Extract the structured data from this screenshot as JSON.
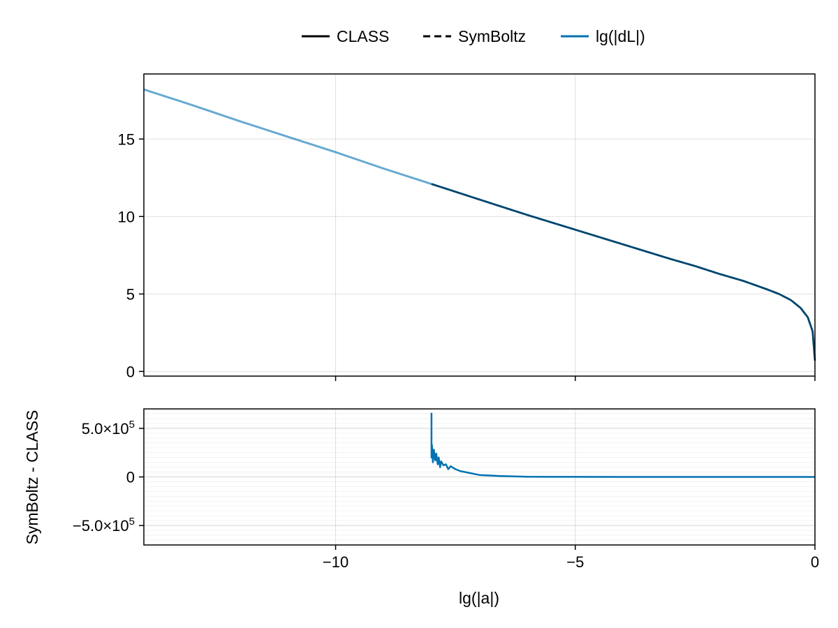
{
  "chart_data": [
    {
      "panel": "top",
      "type": "line",
      "xlabel": "",
      "ylabel": "",
      "xlim": [
        -14,
        0
      ],
      "ylim": [
        -0.3,
        19.2
      ],
      "x_ticks": [
        -10,
        -5,
        0
      ],
      "x_tick_labels_visible": false,
      "y_ticks": [
        0,
        5,
        10,
        15
      ],
      "y_tick_labels": [
        "0",
        "5",
        "10",
        "15"
      ],
      "grid": true,
      "legend": {
        "placement": "top-center",
        "entries": [
          {
            "name": "CLASS",
            "style": "solid",
            "color": "#000000"
          },
          {
            "name": "SymBoltz",
            "style": "dashed",
            "color": "#000000"
          },
          {
            "name": "lg(|dL|)",
            "style": "solid",
            "color": "#0072b2"
          }
        ]
      },
      "series": [
        {
          "name": "CLASS",
          "style": "solid",
          "color": "#000000",
          "x": [
            -8.0,
            -7.0,
            -6.0,
            -5.0,
            -4.0,
            -3.0,
            -2.5,
            -2.0,
            -1.5,
            -1.0,
            -0.75,
            -0.5,
            -0.3,
            -0.15,
            -0.05,
            0.0
          ],
          "y": [
            12.1,
            11.1,
            10.1,
            9.15,
            8.2,
            7.25,
            6.8,
            6.3,
            5.85,
            5.3,
            5.0,
            4.6,
            4.1,
            3.5,
            2.6,
            0.7
          ]
        },
        {
          "name": "SymBoltz",
          "style": "dashed",
          "color": "#000000",
          "x": [
            -8.0,
            -7.0,
            -6.0,
            -5.0,
            -4.0,
            -3.0,
            -2.5,
            -2.0,
            -1.5,
            -1.0,
            -0.75,
            -0.5,
            -0.3,
            -0.15,
            -0.05,
            0.0
          ],
          "y": [
            12.1,
            11.1,
            10.1,
            9.15,
            8.2,
            7.25,
            6.8,
            6.3,
            5.85,
            5.3,
            5.0,
            4.6,
            4.1,
            3.5,
            2.6,
            0.7
          ]
        },
        {
          "name": "lg(|dL|)",
          "style": "solid",
          "color": "#0072b2",
          "opacity": 0.6,
          "x": [
            -14.0,
            -13.0,
            -12.0,
            -11.0,
            -10.0,
            -9.0,
            -8.0,
            -7.0,
            -6.0,
            -5.0,
            -4.0,
            -3.0,
            -2.5,
            -2.0,
            -1.5,
            -1.0,
            -0.75,
            -0.5,
            -0.3,
            -0.15,
            -0.05,
            0.0
          ],
          "y": [
            18.2,
            17.2,
            16.15,
            15.15,
            14.15,
            13.1,
            12.1,
            11.1,
            10.1,
            9.15,
            8.2,
            7.25,
            6.8,
            6.3,
            5.85,
            5.3,
            5.0,
            4.6,
            4.1,
            3.5,
            2.6,
            0.7
          ]
        }
      ]
    },
    {
      "panel": "bottom",
      "type": "line",
      "xlabel": "lg(|a|)",
      "ylabel": "SymBoltz - CLASS",
      "xlim": [
        -14,
        0
      ],
      "ylim": [
        -700000,
        700000
      ],
      "x_ticks": [
        -10,
        -5,
        0
      ],
      "x_tick_labels": [
        "−10",
        "−5",
        "0"
      ],
      "y_ticks": [
        -500000,
        0,
        500000
      ],
      "y_tick_labels": [
        {
          "mantissa": "−5.0×10",
          "exp": "5"
        },
        {
          "mantissa": "0",
          "exp": ""
        },
        {
          "mantissa": "5.0×10",
          "exp": "5"
        }
      ],
      "y_minor_step": 50000,
      "grid": true,
      "series": [
        {
          "name": "",
          "color": "#0072b2",
          "x": [
            -8.0,
            -8.0,
            -7.99,
            -7.97,
            -7.95,
            -7.92,
            -7.9,
            -7.87,
            -7.85,
            -7.82,
            -7.8,
            -7.75,
            -7.7,
            -7.65,
            -7.6,
            -7.5,
            -7.4,
            -7.3,
            -7.2,
            -7.1,
            -7.0,
            -6.8,
            -6.6,
            -6.4,
            -6.2,
            -6.0,
            -5.5,
            -5.0,
            -4.0,
            -3.0,
            -2.0,
            -1.0,
            0.0
          ],
          "y": [
            660000,
            200000,
            330000,
            150000,
            280000,
            170000,
            240000,
            130000,
            200000,
            100000,
            160000,
            120000,
            130000,
            80000,
            110000,
            80000,
            60000,
            50000,
            40000,
            30000,
            20000,
            15000,
            10000,
            7000,
            4000,
            2000,
            1000,
            500,
            200,
            100,
            50,
            20,
            0
          ]
        }
      ]
    }
  ]
}
